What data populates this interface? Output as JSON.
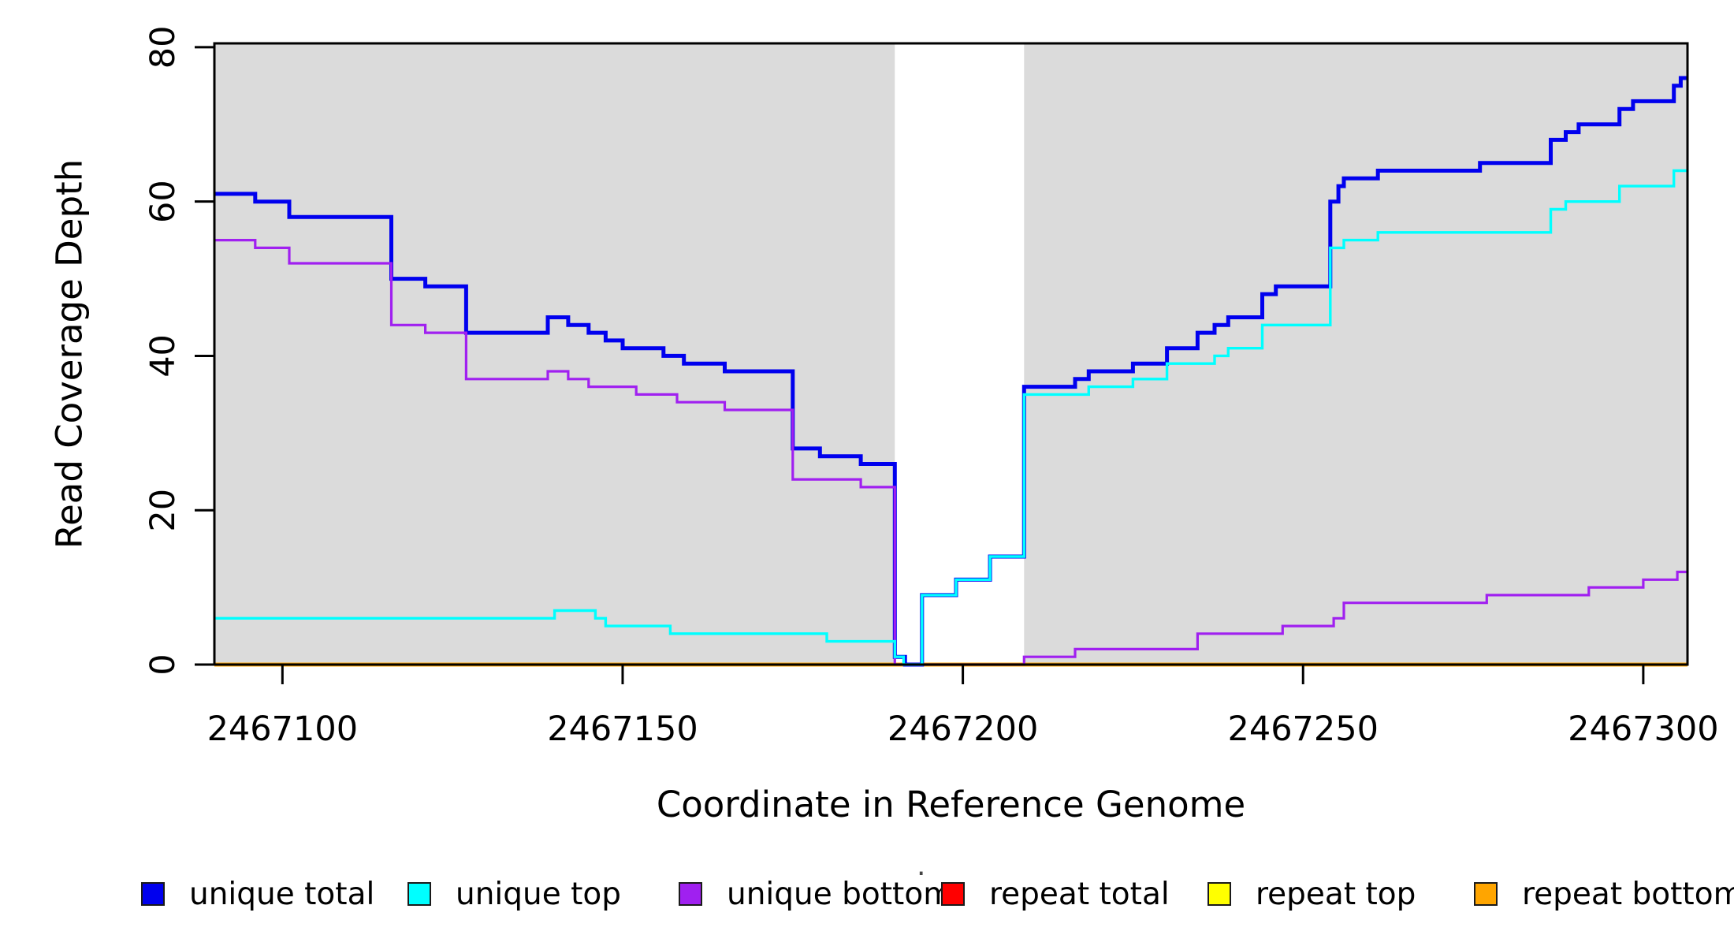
{
  "chart_data": {
    "type": "line",
    "subtype": "step",
    "title": "",
    "xlabel": "Coordinate in Reference Genome",
    "ylabel": "Read Coverage Depth",
    "xlim": [
      2467090,
      2467306.5
    ],
    "ylim": [
      0,
      80.5
    ],
    "x_ticks": [
      2467100,
      2467150,
      2467200,
      2467250,
      2467300
    ],
    "y_ticks": [
      0,
      20,
      40,
      60,
      80
    ],
    "grid": false,
    "legend_position": "bottom",
    "plot_background": "#dbdbdb",
    "white_gap_region": [
      2467190,
      2467209
    ],
    "axis_color": "#000000",
    "draw_order": [
      "repeat top",
      "repeat total",
      "repeat bottom",
      "unique total",
      "unique bottom",
      "unique top"
    ],
    "series": [
      {
        "name": "unique total",
        "color": "#0000ee",
        "line_width": 5,
        "steps": [
          [
            2467090,
            61
          ],
          [
            2467096,
            60
          ],
          [
            2467101,
            58
          ],
          [
            2467116,
            50
          ],
          [
            2467121,
            49
          ],
          [
            2467127,
            43
          ],
          [
            2467139,
            45
          ],
          [
            2467142,
            44
          ],
          [
            2467145,
            43
          ],
          [
            2467147.5,
            42
          ],
          [
            2467150,
            41
          ],
          [
            2467156,
            40
          ],
          [
            2467159,
            39
          ],
          [
            2467165,
            38
          ],
          [
            2467175,
            28
          ],
          [
            2467179,
            27
          ],
          [
            2467185,
            26
          ],
          [
            2467190,
            1
          ],
          [
            2467191.5,
            0
          ],
          [
            2467194,
            9
          ],
          [
            2467199,
            11
          ],
          [
            2467204,
            14
          ],
          [
            2467209,
            36
          ],
          [
            2467216.5,
            37
          ],
          [
            2467218.5,
            38
          ],
          [
            2467225,
            39
          ],
          [
            2467230,
            41
          ],
          [
            2467234.5,
            43
          ],
          [
            2467237,
            44
          ],
          [
            2467239,
            45
          ],
          [
            2467244,
            48
          ],
          [
            2467246,
            49
          ],
          [
            2467254,
            60
          ],
          [
            2467255.2,
            62
          ],
          [
            2467256,
            63
          ],
          [
            2467261,
            64
          ],
          [
            2467276,
            65
          ],
          [
            2467286.4,
            68
          ],
          [
            2467288.6,
            69
          ],
          [
            2467290.5,
            70
          ],
          [
            2467296.5,
            72
          ],
          [
            2467298.5,
            73
          ],
          [
            2467304.5,
            75
          ],
          [
            2467305.5,
            76
          ]
        ]
      },
      {
        "name": "unique top",
        "color": "#00ffff",
        "line_width": 3.4,
        "steps": [
          [
            2467090,
            6
          ],
          [
            2467140,
            7
          ],
          [
            2467146,
            6
          ],
          [
            2467147.5,
            5
          ],
          [
            2467157,
            4
          ],
          [
            2467180,
            3
          ],
          [
            2467190,
            1
          ],
          [
            2467191.3,
            0
          ],
          [
            2467194,
            9
          ],
          [
            2467199,
            11
          ],
          [
            2467204,
            14
          ],
          [
            2467209,
            35
          ],
          [
            2467218.5,
            36
          ],
          [
            2467225,
            37
          ],
          [
            2467230,
            39
          ],
          [
            2467237,
            40
          ],
          [
            2467239,
            41
          ],
          [
            2467244,
            44
          ],
          [
            2467254,
            54
          ],
          [
            2467256,
            55
          ],
          [
            2467261,
            56
          ],
          [
            2467286.4,
            59
          ],
          [
            2467288.6,
            60
          ],
          [
            2467296.5,
            62
          ],
          [
            2467304.5,
            64
          ]
        ]
      },
      {
        "name": "unique bottom",
        "color": "#a020f0",
        "line_width": 3.2,
        "steps": [
          [
            2467090,
            55
          ],
          [
            2467096,
            54
          ],
          [
            2467101,
            52
          ],
          [
            2467116,
            44
          ],
          [
            2467121,
            43
          ],
          [
            2467127,
            37
          ],
          [
            2467139,
            38
          ],
          [
            2467142,
            37
          ],
          [
            2467145,
            36
          ],
          [
            2467152,
            35
          ],
          [
            2467158,
            34
          ],
          [
            2467165,
            33
          ],
          [
            2467175,
            24
          ],
          [
            2467185,
            23
          ],
          [
            2467190,
            0
          ],
          [
            2467209,
            1
          ],
          [
            2467216.5,
            2
          ],
          [
            2467234.5,
            4
          ],
          [
            2467247,
            5
          ],
          [
            2467254.5,
            6
          ],
          [
            2467256,
            8
          ],
          [
            2467277,
            9
          ],
          [
            2467292,
            10
          ],
          [
            2467300,
            11
          ],
          [
            2467305,
            12
          ]
        ]
      },
      {
        "name": "repeat total",
        "color": "#ff0000",
        "line_width": 3,
        "steps": [
          [
            2467090,
            0
          ]
        ]
      },
      {
        "name": "repeat top",
        "color": "#ffff00",
        "line_width": 3,
        "steps": [
          [
            2467090,
            0
          ]
        ]
      },
      {
        "name": "repeat bottom",
        "color": "#ffa500",
        "line_width": 5,
        "steps": [
          [
            2467090,
            0
          ]
        ]
      }
    ]
  },
  "legend": {
    "items": [
      {
        "label": "unique total",
        "color": "#0000ee"
      },
      {
        "label": "unique top",
        "color": "#00ffff"
      },
      {
        "label": "unique bottom",
        "color": "#a020f0"
      },
      {
        "label": "repeat total",
        "color": "#ff0000"
      },
      {
        "label": "repeat top",
        "color": "#ffff00"
      },
      {
        "label": "repeat bottom",
        "color": "#ffa500"
      }
    ],
    "stray_mark": "·"
  }
}
